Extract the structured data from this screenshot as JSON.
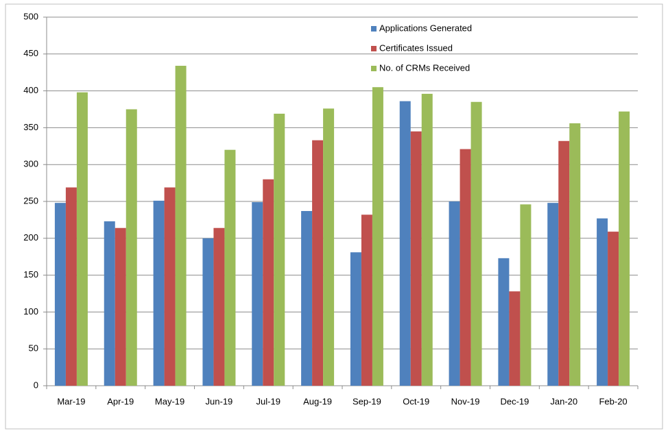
{
  "chart_data": {
    "type": "bar",
    "categories": [
      "Mar-19",
      "Apr-19",
      "May-19",
      "Jun-19",
      "Jul-19",
      "Aug-19",
      "Sep-19",
      "Oct-19",
      "Nov-19",
      "Dec-19",
      "Jan-20",
      "Feb-20"
    ],
    "series": [
      {
        "name": "Applications Generated",
        "color": "#4f81bd",
        "values": [
          248,
          223,
          251,
          200,
          249,
          237,
          181,
          386,
          250,
          173,
          248,
          227
        ]
      },
      {
        "name": "Certificates Issued",
        "color": "#c0504d",
        "values": [
          269,
          214,
          269,
          214,
          280,
          333,
          232,
          345,
          321,
          128,
          332,
          209
        ]
      },
      {
        "name": "No. of CRMs Received",
        "color": "#9bbb59",
        "values": [
          398,
          375,
          434,
          320,
          369,
          376,
          405,
          396,
          385,
          246,
          356,
          372
        ]
      }
    ],
    "ylim": [
      0,
      500
    ],
    "yticks": [
      0,
      50,
      100,
      150,
      200,
      250,
      300,
      350,
      400,
      450,
      500
    ],
    "grid": true,
    "legend": "top-right"
  }
}
